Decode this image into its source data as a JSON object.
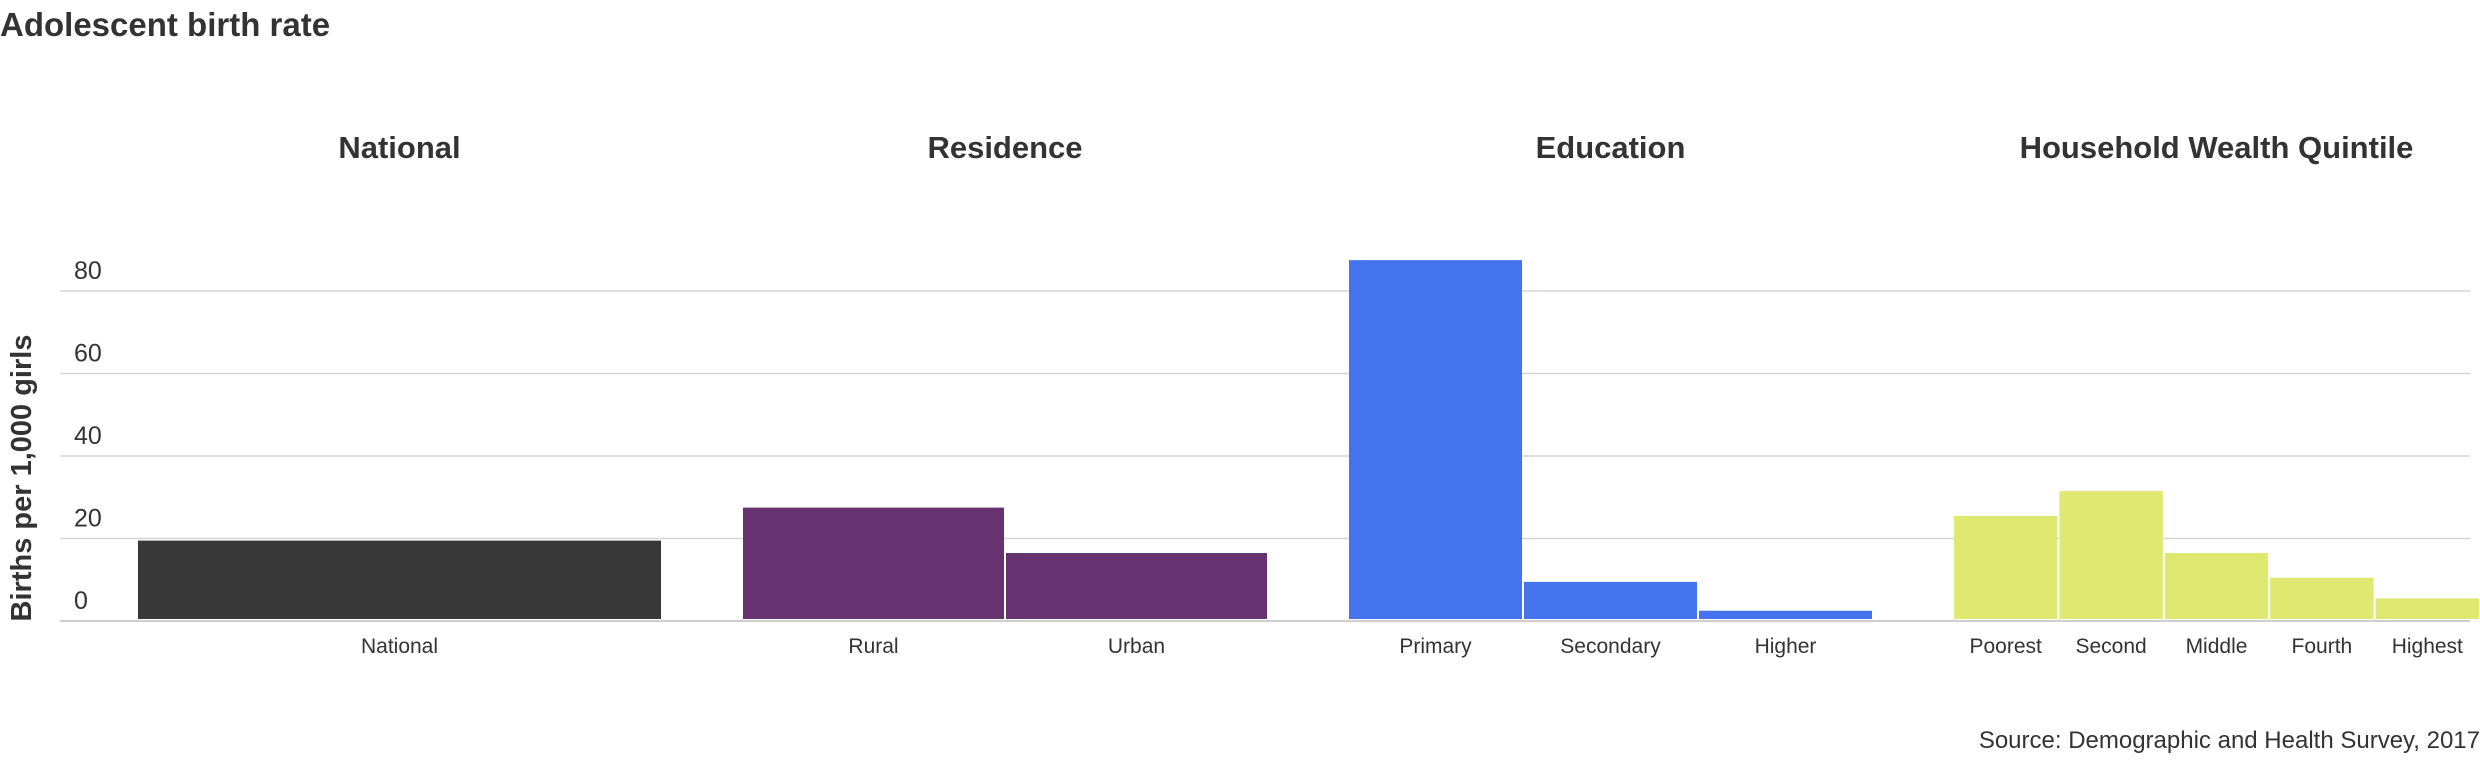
{
  "title": "Adolescent birth rate",
  "source": "Source: Demographic and Health Survey, 2017",
  "colors": {
    "National": "#383838",
    "Residence": "#663370",
    "Education": "#4572ee",
    "Household Wealth Quintile": "#dfe870",
    "grid": "#d6d6d6",
    "axis": "#bdbdbd"
  },
  "chart_data": {
    "type": "bar",
    "ylabel": "Births per 1,000 girls",
    "ylim": [
      0,
      80
    ],
    "yticks": [
      0,
      20,
      40,
      60,
      80
    ],
    "grid": true,
    "panels": [
      {
        "title": "National",
        "categories": [
          "National"
        ],
        "values": [
          19
        ]
      },
      {
        "title": "Residence",
        "categories": [
          "Rural",
          "Urban"
        ],
        "values": [
          27,
          16
        ]
      },
      {
        "title": "Education",
        "categories": [
          "Primary",
          "Secondary",
          "Higher"
        ],
        "values": [
          87,
          9,
          2
        ]
      },
      {
        "title": "Household Wealth Quintile",
        "categories": [
          "Poorest",
          "Second",
          "Middle",
          "Fourth",
          "Highest"
        ],
        "values": [
          25,
          31,
          16,
          10,
          5
        ]
      }
    ]
  }
}
